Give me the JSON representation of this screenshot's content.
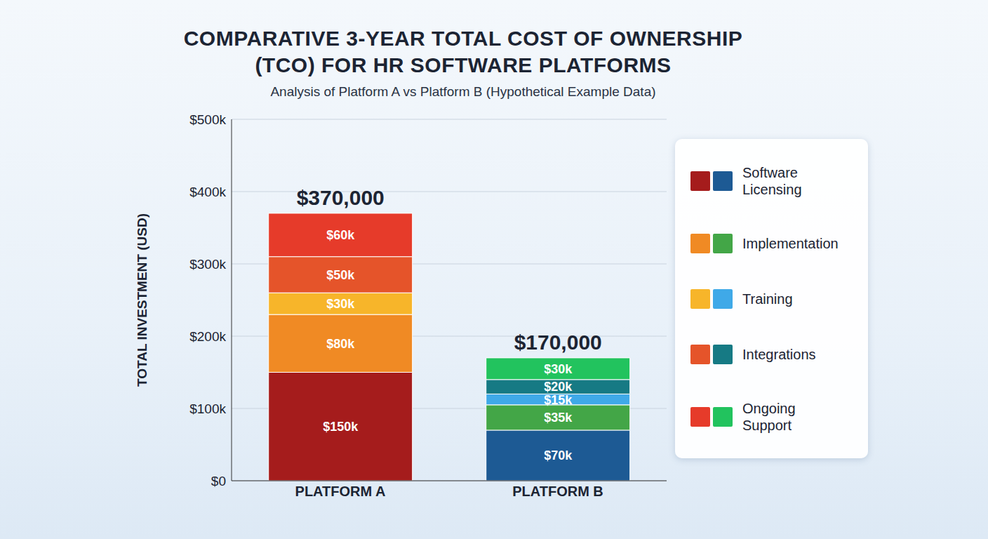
{
  "chart_data": {
    "type": "bar",
    "title": "COMPARATIVE 3-YEAR TOTAL COST OF OWNERSHIP (TCO) FOR HR SOFTWARE PLATFORMS",
    "subtitle": "Analysis of Platform A vs Platform B (Hypothetical Example Data)",
    "y_label": "TOTAL INVESTMENT (USD)",
    "categories": [
      "PLATFORM A",
      "PLATFORM B"
    ],
    "stacked": true,
    "data_labels": true,
    "grid": true,
    "ylim": [
      0,
      500
    ],
    "yticks": [
      {
        "value": 0,
        "label": "$0"
      },
      {
        "value": 100,
        "label": "$100k"
      },
      {
        "value": 200,
        "label": "$200k"
      },
      {
        "value": 300,
        "label": "$300k"
      },
      {
        "value": 400,
        "label": "$400k"
      },
      {
        "value": 500,
        "label": "$500k"
      }
    ],
    "total_labels": [
      "$370,000",
      "$170,000"
    ],
    "series": [
      {
        "name": "Software Licensing",
        "colors": [
          "#a51c1c",
          "#1d5a94"
        ],
        "values": [
          150,
          70
        ],
        "value_labels": [
          "$150k",
          "$70k"
        ]
      },
      {
        "name": "Implementation",
        "colors": [
          "#f08a24",
          "#43a647"
        ],
        "values": [
          80,
          35
        ],
        "value_labels": [
          "$80k",
          "$35k"
        ]
      },
      {
        "name": "Training",
        "colors": [
          "#f7b52a",
          "#3fa9e8"
        ],
        "values": [
          30,
          15
        ],
        "value_labels": [
          "$30k",
          "$15k"
        ]
      },
      {
        "name": "Integrations",
        "colors": [
          "#e5542a",
          "#167a84"
        ],
        "values": [
          50,
          20
        ],
        "value_labels": [
          "$50k",
          "$20k"
        ]
      },
      {
        "name": "Ongoing Support",
        "colors": [
          "#e63b2a",
          "#22c35e"
        ],
        "values": [
          60,
          30
        ],
        "value_labels": [
          "$60k",
          "$30k"
        ]
      }
    ]
  }
}
